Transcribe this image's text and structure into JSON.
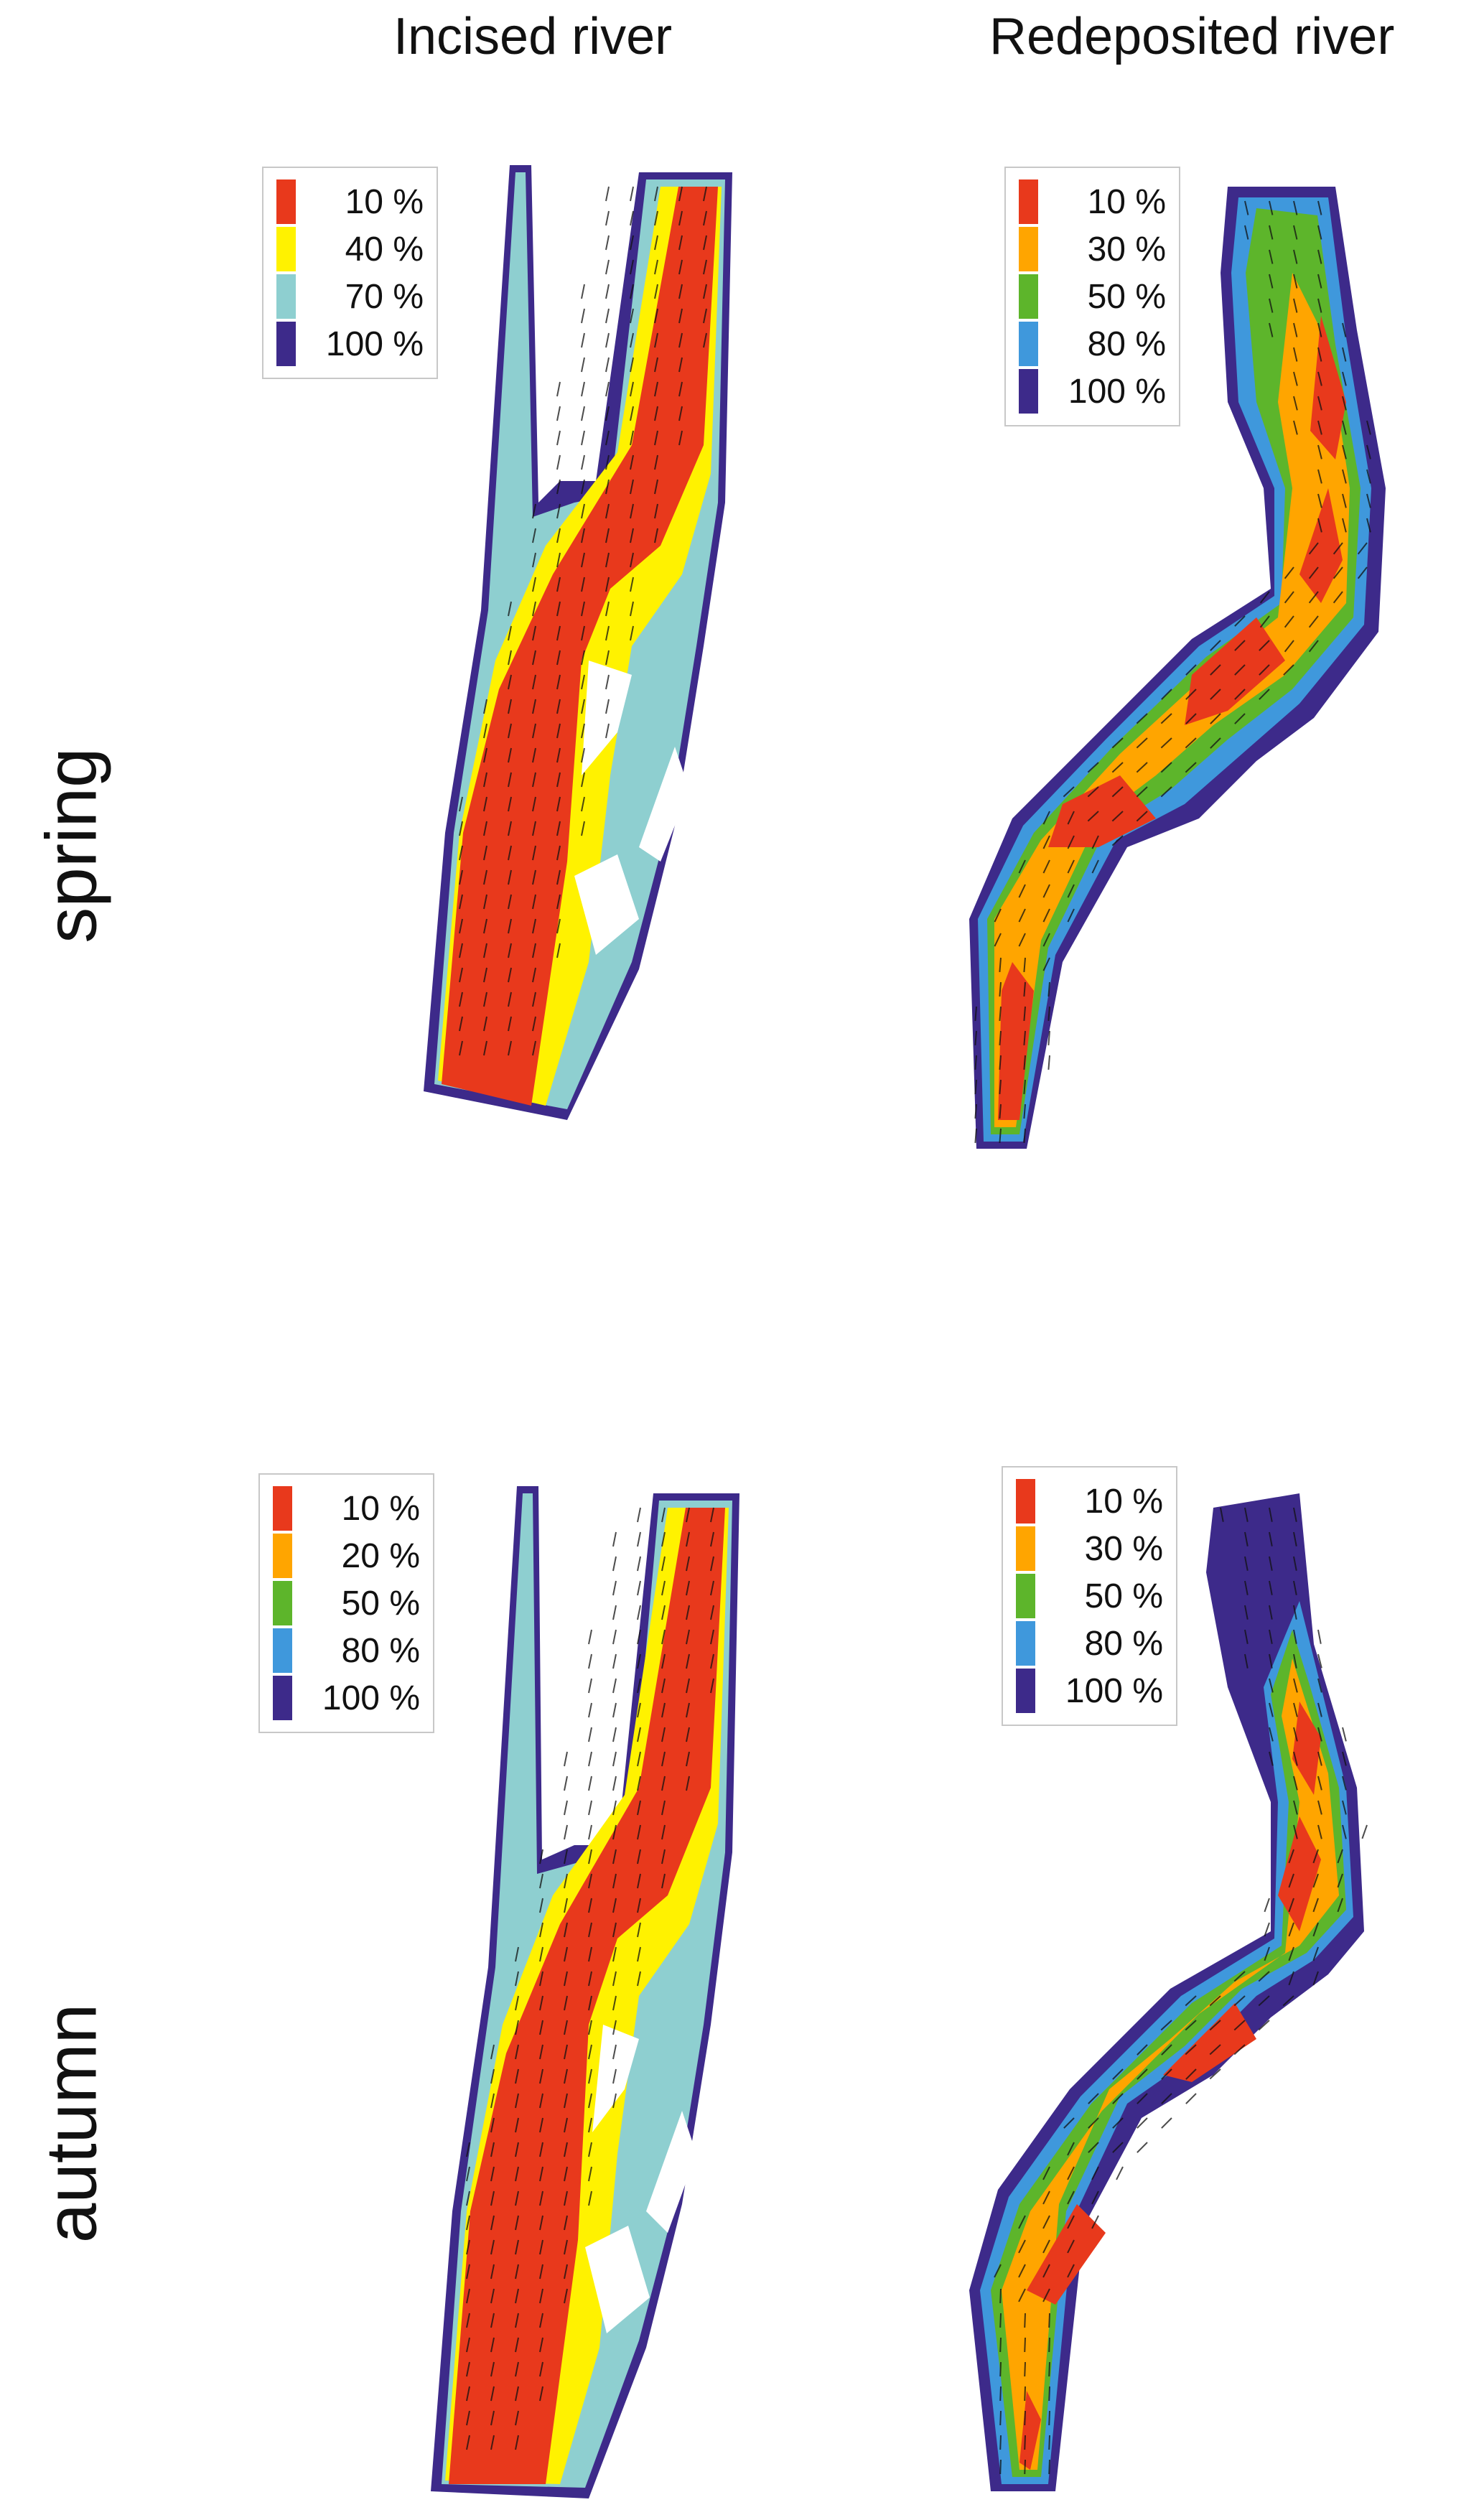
{
  "columns": {
    "left": "Incised river",
    "right": "Redeposited river"
  },
  "rows": {
    "top": "spring",
    "bottom": "autumn"
  },
  "colors": {
    "red": "#e8391c",
    "yellow": "#fff200",
    "orange": "#ffa500",
    "green": "#5db52b",
    "cyan": "#8ecfd0",
    "blue": "#3f98dc",
    "navy": "#3d2a8a",
    "arrow": "#111111"
  },
  "panels": {
    "incised_spring": {
      "legend": [
        {
          "label": "10 %",
          "color": "#e8391c"
        },
        {
          "label": "40 %",
          "color": "#fff200"
        },
        {
          "label": "70 %",
          "color": "#8ecfd0"
        },
        {
          "label": "100 %",
          "color": "#3d2a8a"
        }
      ]
    },
    "redeposited_spring": {
      "legend": [
        {
          "label": "10 %",
          "color": "#e8391c"
        },
        {
          "label": "30 %",
          "color": "#ffa500"
        },
        {
          "label": "50 %",
          "color": "#5db52b"
        },
        {
          "label": "80 %",
          "color": "#3f98dc"
        },
        {
          "label": "100 %",
          "color": "#3d2a8a"
        }
      ]
    },
    "incised_autumn": {
      "legend": [
        {
          "label": "10 %",
          "color": "#e8391c"
        },
        {
          "label": "20 %",
          "color": "#ffa500"
        },
        {
          "label": "50 %",
          "color": "#5db52b"
        },
        {
          "label": "80 %",
          "color": "#3f98dc"
        },
        {
          "label": "100 %",
          "color": "#3d2a8a"
        }
      ]
    },
    "redeposited_autumn": {
      "legend": [
        {
          "label": "10 %",
          "color": "#e8391c"
        },
        {
          "label": "30 %",
          "color": "#ffa500"
        },
        {
          "label": "50 %",
          "color": "#5db52b"
        },
        {
          "label": "80 %",
          "color": "#3f98dc"
        },
        {
          "label": "100 %",
          "color": "#3d2a8a"
        }
      ]
    }
  }
}
